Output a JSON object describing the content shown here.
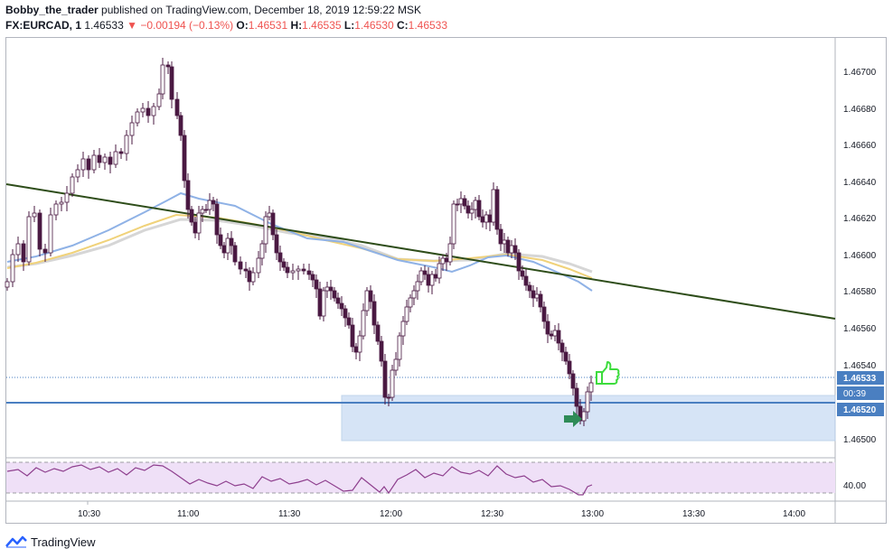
{
  "header": {
    "author": "Bobby_the_trader",
    "published_text": "published on TradingView.com, December 18, 2019 12:59:22 MSK",
    "symbol": "FX:EURCAD, 1",
    "last": "1.46533",
    "arrow": "▼",
    "change": "−0.00194 (−0.13%)",
    "o_label": "O:",
    "o_value": "1.46531",
    "h_label": "H:",
    "h_value": "1.46535",
    "l_label": "L:",
    "l_value": "1.46530",
    "c_label": "C:",
    "c_value": "1.46533"
  },
  "price_axis": {
    "ticks": [
      "1.46700",
      "1.46680",
      "1.46660",
      "1.46640",
      "1.46620",
      "1.46600",
      "1.46580",
      "1.46560",
      "1.46540",
      "1.46500"
    ],
    "last_price_tag": "1.46533",
    "countdown_tag": "00:39",
    "level_tag": "1.46520"
  },
  "rsi_axis": {
    "tick": "40.00"
  },
  "time_axis": {
    "ticks": [
      "10:30",
      "11:00",
      "11:30",
      "12:00",
      "12:30",
      "13:00",
      "13:30",
      "14:00"
    ]
  },
  "footer": {
    "brand": "TradingView"
  },
  "colors": {
    "up": "#ffffff",
    "down": "#4a1942",
    "trendline": "#2e4d1a",
    "support": "#4a7fc1",
    "zone": "#cfe0f5",
    "ma_blue": "#8fb2e6",
    "ma_yellow": "#f0d27a",
    "ma_grey": "#d6d6d6",
    "rsi": "#8e3f8e",
    "rsi_band": "#efe0f7",
    "thumb": "#3ddc3d",
    "arrow": "#2e8b57",
    "price_tag": "#4a7fc1"
  },
  "chart_data": {
    "type": "candlestick",
    "symbol": "FX:EURCAD",
    "timeframe": "1",
    "ylim": [
      1.46495,
      1.46712
    ],
    "x_range": [
      "10:12",
      "14:12"
    ],
    "support_level": 1.4652,
    "zone": {
      "from_time": "11:50",
      "to_time": "14:12",
      "from_price": 1.465,
      "to_price": 1.46524
    },
    "trendline": {
      "start": [
        "10:12",
        1.4664
      ],
      "end": [
        "14:12",
        1.46565
      ]
    },
    "last_price": 1.46533,
    "rsi_level": 40.0
  }
}
